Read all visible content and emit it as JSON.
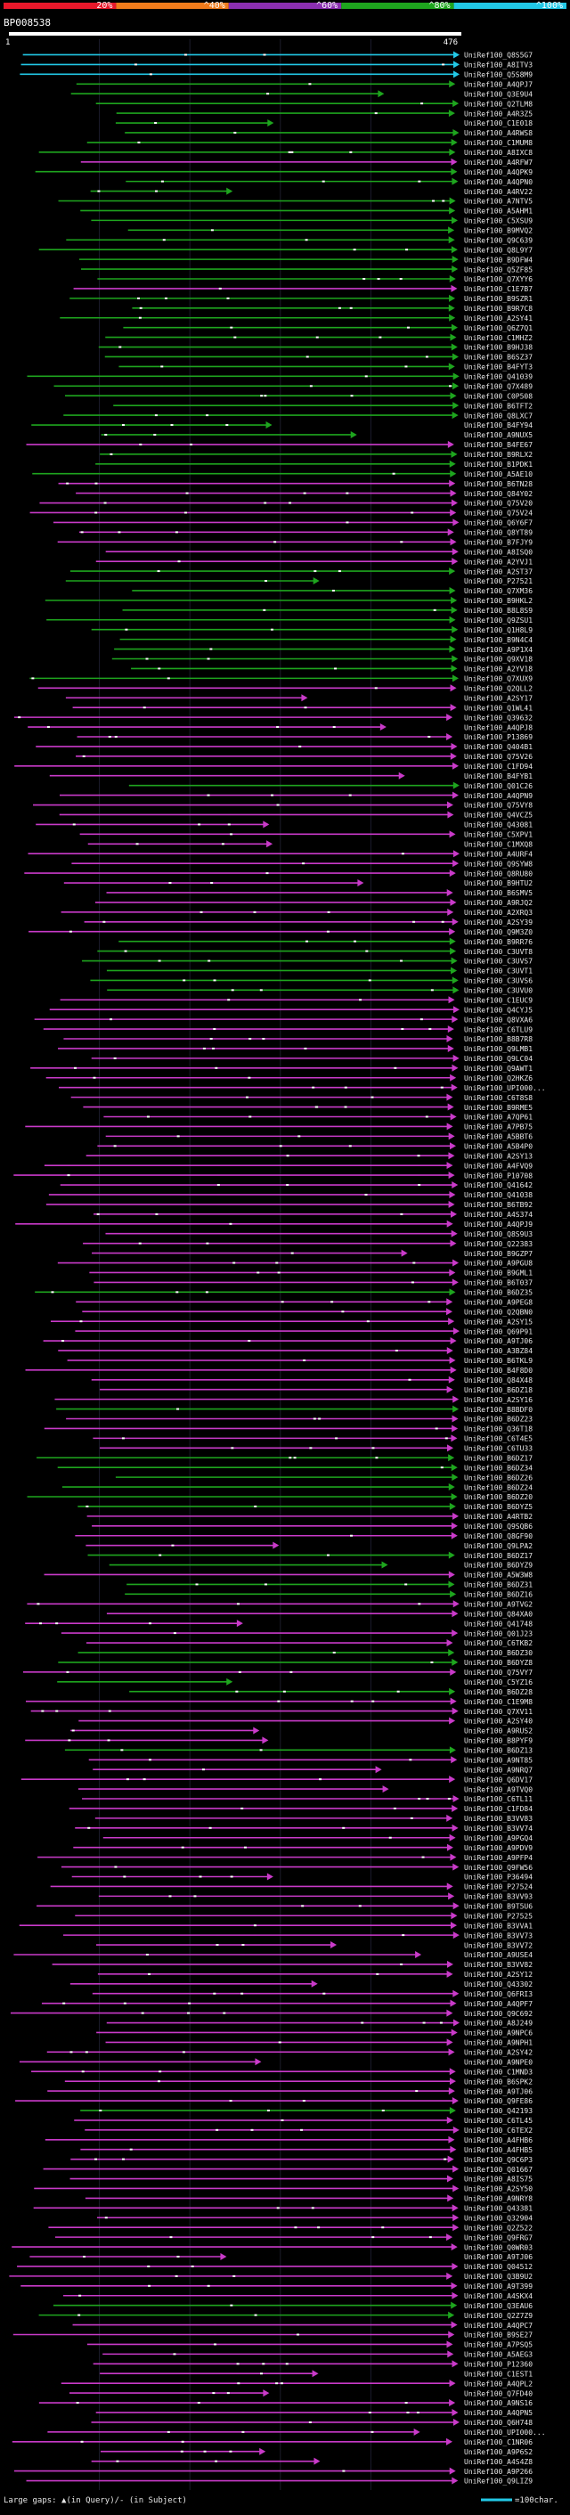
{
  "scale": {
    "ticks": [
      "20%",
      "^40%",
      "^60%",
      "^80%",
      "^100%"
    ],
    "colors": [
      "#e8182a",
      "#f07b1b",
      "#8b2fb0",
      "#1ea51e",
      "#22c8e6"
    ]
  },
  "query": {
    "id": "BP008538",
    "start": "1",
    "end": "476"
  },
  "colors": {
    "cyan": "#22c8e6",
    "green": "#1ea51e",
    "purple": "#c93ac9",
    "gridline": "#1c1c2c",
    "query_bar": "#ffffff",
    "label": "#e6e6e6"
  },
  "rows": [
    {
      "label": "UniRef100_Q8S5G7",
      "c": "cyan"
    },
    {
      "label": "UniRef100_A8ITV3",
      "c": "cyan"
    },
    {
      "label": "UniRef100_Q5S8M9",
      "c": "cyan"
    },
    {
      "label": "UniRef100_A4QPJ7",
      "c": "green"
    },
    {
      "label": "UniRef100_Q3E9U4",
      "c": "green"
    },
    {
      "label": "UniRef100_Q2TLM8",
      "c": "green"
    },
    {
      "label": "UniRef100_A4R3Z5",
      "c": "green"
    },
    {
      "label": "UniRef100_C1E018",
      "c": "green"
    },
    {
      "label": "UniRef100_A4RWS8",
      "c": "green"
    },
    {
      "label": "UniRef100_C1MUM8",
      "c": "green"
    },
    {
      "label": "UniRef100_A8IXC8",
      "c": "green"
    },
    {
      "label": "UniRef100_A4RFW7",
      "c": "purple"
    },
    {
      "label": "UniRef100_A4QPK9",
      "c": "green"
    },
    {
      "label": "UniRef100_A4QPN0",
      "c": "green"
    },
    {
      "label": "UniRef100_A4RV22",
      "c": "green"
    },
    {
      "label": "UniRef100_A7NTV5",
      "c": "green"
    },
    {
      "label": "UniRef100_A5AHM1",
      "c": "green"
    },
    {
      "label": "UniRef100_C5XSU9",
      "c": "green"
    },
    {
      "label": "UniRef100_B9MVQ2",
      "c": "green"
    },
    {
      "label": "UniRef100_Q9C639",
      "c": "green"
    },
    {
      "label": "UniRef100_Q8L9Y7",
      "c": "green"
    },
    {
      "label": "UniRef100_B9DFW4",
      "c": "green"
    },
    {
      "label": "UniRef100_Q5ZF85",
      "c": "green"
    },
    {
      "label": "UniRef100_Q7XYY6",
      "c": "green"
    },
    {
      "label": "UniRef100_C1E7B7",
      "c": "purple"
    },
    {
      "label": "UniRef100_B9SZR1",
      "c": "green"
    },
    {
      "label": "UniRef100_B9R7C8",
      "c": "green"
    },
    {
      "label": "UniRef100_A2SY41",
      "c": "green"
    },
    {
      "label": "UniRef100_Q6Z7Q1",
      "c": "green"
    },
    {
      "label": "UniRef100_C1MHZ2",
      "c": "green"
    },
    {
      "label": "UniRef100_B9HJ38",
      "c": "green"
    },
    {
      "label": "UniRef100_B6SZ37",
      "c": "green"
    },
    {
      "label": "UniRef100_B4FYT3",
      "c": "green"
    },
    {
      "label": "UniRef100_Q41039",
      "c": "green"
    },
    {
      "label": "UniRef100_Q7X489",
      "c": "green"
    },
    {
      "label": "UniRef100_C0P508",
      "c": "green"
    },
    {
      "label": "UniRef100_B6TFT2",
      "c": "green"
    },
    {
      "label": "UniRef100_Q8LXC7",
      "c": "green"
    },
    {
      "label": "UniRef100_B4FY94",
      "c": "green"
    },
    {
      "label": "UniRef100_A9NUX5",
      "c": "green"
    },
    {
      "label": "UniRef100_B4FE67",
      "c": "purple"
    },
    {
      "label": "UniRef100_B9RLX2",
      "c": "green"
    },
    {
      "label": "UniRef100_B1PDK1",
      "c": "green"
    },
    {
      "label": "UniRef100_A5AE10",
      "c": "green"
    },
    {
      "label": "UniRef100_B6TN28",
      "c": "purple"
    },
    {
      "label": "UniRef100_Q84Y02",
      "c": "purple"
    },
    {
      "label": "UniRef100_Q75V20",
      "c": "purple"
    },
    {
      "label": "UniRef100_Q75V24",
      "c": "purple"
    },
    {
      "label": "UniRef100_Q6Y6F7",
      "c": "purple"
    },
    {
      "label": "UniRef100_Q8YT89",
      "c": "purple"
    },
    {
      "label": "UniRef100_B7FJY9",
      "c": "purple"
    },
    {
      "label": "UniRef100_A8ISQ0",
      "c": "purple"
    },
    {
      "label": "UniRef100_A2YVJ1",
      "c": "purple"
    },
    {
      "label": "UniRef100_A2ST37",
      "c": "green"
    },
    {
      "label": "UniRef100_P27521",
      "c": "green"
    },
    {
      "label": "UniRef100_Q7XM36",
      "c": "green"
    },
    {
      "label": "UniRef100_B9HKL2",
      "c": "green"
    },
    {
      "label": "UniRef100_B8L8S9",
      "c": "green"
    },
    {
      "label": "UniRef100_Q9ZSU1",
      "c": "green"
    },
    {
      "label": "UniRef100_Q1H8L9",
      "c": "green"
    },
    {
      "label": "UniRef100_B9N4C4",
      "c": "green"
    },
    {
      "label": "UniRef100_A9P1X4",
      "c": "green"
    },
    {
      "label": "UniRef100_Q9XV18",
      "c": "green"
    },
    {
      "label": "UniRef100_A2YV18",
      "c": "green"
    },
    {
      "label": "UniRef100_Q7XUX9",
      "c": "green"
    },
    {
      "label": "UniRef100_Q2QLL2",
      "c": "purple"
    },
    {
      "label": "UniRef100_A2SY17",
      "c": "purple"
    },
    {
      "label": "UniRef100_Q1WL41",
      "c": "purple"
    },
    {
      "label": "UniRef100_Q39632",
      "c": "purple"
    },
    {
      "label": "UniRef100_A4QPJ8",
      "c": "purple"
    },
    {
      "label": "UniRef100_P13869",
      "c": "purple"
    },
    {
      "label": "UniRef100_Q404B1",
      "c": "purple"
    },
    {
      "label": "UniRef100_Q75V26",
      "c": "purple"
    },
    {
      "label": "UniRef100_C1FD94",
      "c": "purple"
    },
    {
      "label": "UniRef100_B4FYB1",
      "c": "purple"
    },
    {
      "label": "UniRef100_Q01C26",
      "c": "green"
    },
    {
      "label": "UniRef100_A4QPN9",
      "c": "purple"
    },
    {
      "label": "UniRef100_Q75VY8",
      "c": "purple"
    },
    {
      "label": "UniRef100_Q4VCZ5",
      "c": "purple"
    },
    {
      "label": "UniRef100_Q43081",
      "c": "purple"
    },
    {
      "label": "UniRef100_C5XPV1",
      "c": "purple"
    },
    {
      "label": "UniRef100_C1MXQ8",
      "c": "purple"
    },
    {
      "label": "UniRef100_A4URF4",
      "c": "purple"
    },
    {
      "label": "UniRef100_Q9SYW8",
      "c": "purple"
    },
    {
      "label": "UniRef100_Q8RU80",
      "c": "purple"
    },
    {
      "label": "UniRef100_B9HTU2",
      "c": "purple"
    },
    {
      "label": "UniRef100_B6SMV5",
      "c": "purple"
    },
    {
      "label": "UniRef100_A9RJQ2",
      "c": "purple"
    },
    {
      "label": "UniRef100_A2XRQ3",
      "c": "purple"
    },
    {
      "label": "UniRef100_A2SY39",
      "c": "purple"
    },
    {
      "label": "UniRef100_Q9M3Z0",
      "c": "purple"
    },
    {
      "label": "UniRef100_B9RR76",
      "c": "green"
    },
    {
      "label": "UniRef100_C3UVT8",
      "c": "green"
    },
    {
      "label": "UniRef100_C3UVS7",
      "c": "green"
    },
    {
      "label": "UniRef100_C3UVT1",
      "c": "green"
    },
    {
      "label": "UniRef100_C3UVS6",
      "c": "green"
    },
    {
      "label": "UniRef100_C3UVU0",
      "c": "green"
    },
    {
      "label": "UniRef100_C1EUC9",
      "c": "purple"
    },
    {
      "label": "UniRef100_Q4CYJ5",
      "c": "purple"
    },
    {
      "label": "UniRef100_Q8VXA6",
      "c": "purple"
    },
    {
      "label": "UniRef100_C6TLU9",
      "c": "purple"
    },
    {
      "label": "UniRef100_B8B7R8",
      "c": "purple"
    },
    {
      "label": "UniRef100_Q9LMB1",
      "c": "purple"
    },
    {
      "label": "UniRef100_Q9LC04",
      "c": "purple"
    },
    {
      "label": "UniRef100_Q9AWT1",
      "c": "purple"
    },
    {
      "label": "UniRef100_Q2HKZ6",
      "c": "purple"
    },
    {
      "label": "UniRef100_UPI000...",
      "c": "purple"
    },
    {
      "label": "UniRef100_C6T8S8",
      "c": "purple"
    },
    {
      "label": "UniRef100_B9RME5",
      "c": "purple"
    },
    {
      "label": "UniRef100_A7QP61",
      "c": "purple"
    },
    {
      "label": "UniRef100_A7PB75",
      "c": "purple"
    },
    {
      "label": "UniRef100_A5BBT6",
      "c": "purple"
    },
    {
      "label": "UniRef100_A5B4P0",
      "c": "purple"
    },
    {
      "label": "UniRef100_A2SY13",
      "c": "purple"
    },
    {
      "label": "UniRef100_A4FVQ9",
      "c": "purple"
    },
    {
      "label": "UniRef100_P10708",
      "c": "purple"
    },
    {
      "label": "UniRef100_Q41642",
      "c": "purple"
    },
    {
      "label": "UniRef100_Q41038",
      "c": "purple"
    },
    {
      "label": "UniRef100_B6TB92",
      "c": "purple"
    },
    {
      "label": "UniRef100_A4S374",
      "c": "purple"
    },
    {
      "label": "UniRef100_A4QPJ9",
      "c": "purple"
    },
    {
      "label": "UniRef100_Q8S9U3",
      "c": "purple"
    },
    {
      "label": "UniRef100_Q22383",
      "c": "purple"
    },
    {
      "label": "UniRef100_B9GZP7",
      "c": "purple"
    },
    {
      "label": "UniRef100_A9PGU8",
      "c": "purple"
    },
    {
      "label": "UniRef100_B9GML1",
      "c": "purple"
    },
    {
      "label": "UniRef100_B6T037",
      "c": "purple"
    },
    {
      "label": "UniRef100_B6DZ35",
      "c": "green"
    },
    {
      "label": "UniRef100_A9PEG8",
      "c": "purple"
    },
    {
      "label": "UniRef100_Q2QBN0",
      "c": "purple"
    },
    {
      "label": "UniRef100_A2SY15",
      "c": "purple"
    },
    {
      "label": "UniRef100_Q69P91",
      "c": "purple"
    },
    {
      "label": "UniRef100_A9TJ06",
      "c": "purple"
    },
    {
      "label": "UniRef100_A3BZ84",
      "c": "purple"
    },
    {
      "label": "UniRef100_B6TKL9",
      "c": "purple"
    },
    {
      "label": "UniRef100_B4F8D0",
      "c": "purple"
    },
    {
      "label": "UniRef100_Q84X48",
      "c": "purple"
    },
    {
      "label": "UniRef100_B6DZ18",
      "c": "purple"
    },
    {
      "label": "UniRef100_A2SY16",
      "c": "purple"
    },
    {
      "label": "UniRef100_B8BDF0",
      "c": "green"
    },
    {
      "label": "UniRef100_B6DZ23",
      "c": "purple"
    },
    {
      "label": "UniRef100_Q36T18",
      "c": "purple"
    },
    {
      "label": "UniRef100_C6T4E5",
      "c": "purple"
    },
    {
      "label": "UniRef100_C6TU33",
      "c": "purple"
    },
    {
      "label": "UniRef100_B6DZ17",
      "c": "green"
    },
    {
      "label": "UniRef100_B6DZ34",
      "c": "green"
    },
    {
      "label": "UniRef100_B6DZ26",
      "c": "green"
    },
    {
      "label": "UniRef100_B6DZ24",
      "c": "green"
    },
    {
      "label": "UniRef100_B6DZ20",
      "c": "green"
    },
    {
      "label": "UniRef100_B6DYZ5",
      "c": "green"
    },
    {
      "label": "UniRef100_A4RTB2",
      "c": "purple"
    },
    {
      "label": "UniRef100_Q9SQB6",
      "c": "purple"
    },
    {
      "label": "UniRef100_Q8GF90",
      "c": "purple"
    },
    {
      "label": "UniRef100_Q9LPA2",
      "c": "purple"
    },
    {
      "label": "UniRef100_B6DZ17",
      "c": "green"
    },
    {
      "label": "UniRef100_B6DYZ9",
      "c": "green"
    },
    {
      "label": "UniRef100_A5W3W8",
      "c": "purple"
    },
    {
      "label": "UniRef100_B6DZ31",
      "c": "green"
    },
    {
      "label": "UniRef100_B6DZ16",
      "c": "green"
    },
    {
      "label": "UniRef100_A9TVG2",
      "c": "purple"
    },
    {
      "label": "UniRef100_Q84XA0",
      "c": "purple"
    },
    {
      "label": "UniRef100_Q41748",
      "c": "purple"
    },
    {
      "label": "UniRef100_Q01J23",
      "c": "purple"
    },
    {
      "label": "UniRef100_C6TKB2",
      "c": "purple"
    },
    {
      "label": "UniRef100_B6DZ30",
      "c": "green"
    },
    {
      "label": "UniRef100_B6DYZ8",
      "c": "green"
    },
    {
      "label": "UniRef100_Q75VY7",
      "c": "purple"
    },
    {
      "label": "UniRef100_C5YZ16",
      "c": "green"
    },
    {
      "label": "UniRef100_B6DZ28",
      "c": "green"
    },
    {
      "label": "UniRef100_C1E9M8",
      "c": "purple"
    },
    {
      "label": "UniRef100_Q7XV11",
      "c": "purple"
    },
    {
      "label": "UniRef100_A2SY40",
      "c": "purple"
    },
    {
      "label": "UniRef100_A9RUS2",
      "c": "purple"
    },
    {
      "label": "UniRef100_B8PYF9",
      "c": "purple"
    },
    {
      "label": "UniRef100_B6DZ13",
      "c": "green"
    },
    {
      "label": "UniRef100_A9NT85",
      "c": "purple"
    },
    {
      "label": "UniRef100_A9NRQ7",
      "c": "purple"
    },
    {
      "label": "UniRef100_Q6DV17",
      "c": "purple"
    },
    {
      "label": "UniRef100_A9TVQ0",
      "c": "purple"
    },
    {
      "label": "UniRef100_C6TL11",
      "c": "purple"
    },
    {
      "label": "UniRef100_C1FD84",
      "c": "purple"
    },
    {
      "label": "UniRef100_B3VV83",
      "c": "purple"
    },
    {
      "label": "UniRef100_B3VV74",
      "c": "purple"
    },
    {
      "label": "UniRef100_A9PGQ4",
      "c": "purple"
    },
    {
      "label": "UniRef100_A9PDV9",
      "c": "purple"
    },
    {
      "label": "UniRef100_A9PFP4",
      "c": "purple"
    },
    {
      "label": "UniRef100_Q9FW56",
      "c": "purple"
    },
    {
      "label": "UniRef100_P36494",
      "c": "purple"
    },
    {
      "label": "UniRef100_P27524",
      "c": "purple"
    },
    {
      "label": "UniRef100_B3VV93",
      "c": "purple"
    },
    {
      "label": "UniRef100_B9T5U6",
      "c": "purple"
    },
    {
      "label": "UniRef100_P27525",
      "c": "purple"
    },
    {
      "label": "UniRef100_B3VVA1",
      "c": "purple"
    },
    {
      "label": "UniRef100_B3VV73",
      "c": "purple"
    },
    {
      "label": "UniRef100_B3VV72",
      "c": "purple"
    },
    {
      "label": "UniRef100_A9USE4",
      "c": "purple"
    },
    {
      "label": "UniRef100_B3VV82",
      "c": "purple"
    },
    {
      "label": "UniRef100_A2SY12",
      "c": "purple"
    },
    {
      "label": "UniRef100_Q43302",
      "c": "purple"
    },
    {
      "label": "UniRef100_Q6FRI3",
      "c": "purple"
    },
    {
      "label": "UniRef100_A4QPF7",
      "c": "purple"
    },
    {
      "label": "UniRef100_Q9C692",
      "c": "purple"
    },
    {
      "label": "UniRef100_A8J249",
      "c": "purple"
    },
    {
      "label": "UniRef100_A9NPC6",
      "c": "purple"
    },
    {
      "label": "UniRef100_A9NPH1",
      "c": "purple"
    },
    {
      "label": "UniRef100_A2SY42",
      "c": "purple"
    },
    {
      "label": "UniRef100_A9NPE0",
      "c": "purple"
    },
    {
      "label": "UniRef100_C1MND3",
      "c": "purple"
    },
    {
      "label": "UniRef100_B6SPK2",
      "c": "purple"
    },
    {
      "label": "UniRef100_A9TJ06",
      "c": "purple"
    },
    {
      "label": "UniRef100_Q9FE86",
      "c": "purple"
    },
    {
      "label": "UniRef100_Q42193",
      "c": "green"
    },
    {
      "label": "UniRef100_C6TL45",
      "c": "purple"
    },
    {
      "label": "UniRef100_C6TEX2",
      "c": "purple"
    },
    {
      "label": "UniRef100_A4FHB6",
      "c": "purple"
    },
    {
      "label": "UniRef100_A4FHB5",
      "c": "purple"
    },
    {
      "label": "UniRef100_Q9C6P3",
      "c": "purple"
    },
    {
      "label": "UniRef100_Q01667",
      "c": "purple"
    },
    {
      "label": "UniRef100_A8IS75",
      "c": "purple"
    },
    {
      "label": "UniRef100_A2SY50",
      "c": "purple"
    },
    {
      "label": "UniRef100_A9NRY8",
      "c": "purple"
    },
    {
      "label": "UniRef100_Q43381",
      "c": "purple"
    },
    {
      "label": "UniRef100_Q32904",
      "c": "purple"
    },
    {
      "label": "UniRef100_Q2Z522",
      "c": "purple"
    },
    {
      "label": "UniRef100_Q9FRG7",
      "c": "purple"
    },
    {
      "label": "UniRef100_Q0WR03",
      "c": "purple"
    },
    {
      "label": "UniRef100_A9TJ06",
      "c": "purple"
    },
    {
      "label": "UniRef100_Q04512",
      "c": "purple"
    },
    {
      "label": "UniRef100_Q3B9U2",
      "c": "purple"
    },
    {
      "label": "UniRef100_A9T399",
      "c": "purple"
    },
    {
      "label": "UniRef100_A4SKX4",
      "c": "purple"
    },
    {
      "label": "UniRef100_Q3EAU6",
      "c": "green"
    },
    {
      "label": "UniRef100_Q2Z7Z9",
      "c": "green"
    },
    {
      "label": "UniRef100_A4QPC7",
      "c": "purple"
    },
    {
      "label": "UniRef100_B9SE27",
      "c": "purple"
    },
    {
      "label": "UniRef100_A7PSQ5",
      "c": "purple"
    },
    {
      "label": "UniRef100_A5AEG3",
      "c": "purple"
    },
    {
      "label": "UniRef100_P12360",
      "c": "purple"
    },
    {
      "label": "UniRef100_C1EST1",
      "c": "purple"
    },
    {
      "label": "UniRef100_A4QPL2",
      "c": "purple"
    },
    {
      "label": "UniRef100_Q7FD40",
      "c": "purple"
    },
    {
      "label": "UniRef100_A9NS16",
      "c": "purple"
    },
    {
      "label": "UniRef100_A4QPN5",
      "c": "purple"
    },
    {
      "label": "UniRef100_Q6H748",
      "c": "purple"
    },
    {
      "label": "UniRef100_UPI000...",
      "c": "purple"
    },
    {
      "label": "UniRef100_C1NR06",
      "c": "purple"
    },
    {
      "label": "UniRef100_A9P6S2",
      "c": "purple"
    },
    {
      "label": "UniRef100_A4S4Z8",
      "c": "purple"
    },
    {
      "label": "UniRef100_A9P266",
      "c": "purple"
    },
    {
      "label": "UniRef100_Q9LIZ9",
      "c": "purple"
    }
  ],
  "legend": {
    "gaps_text": "Large gaps: ▲(in Query)/- (in Subject)",
    "scale_text": "=100char."
  }
}
